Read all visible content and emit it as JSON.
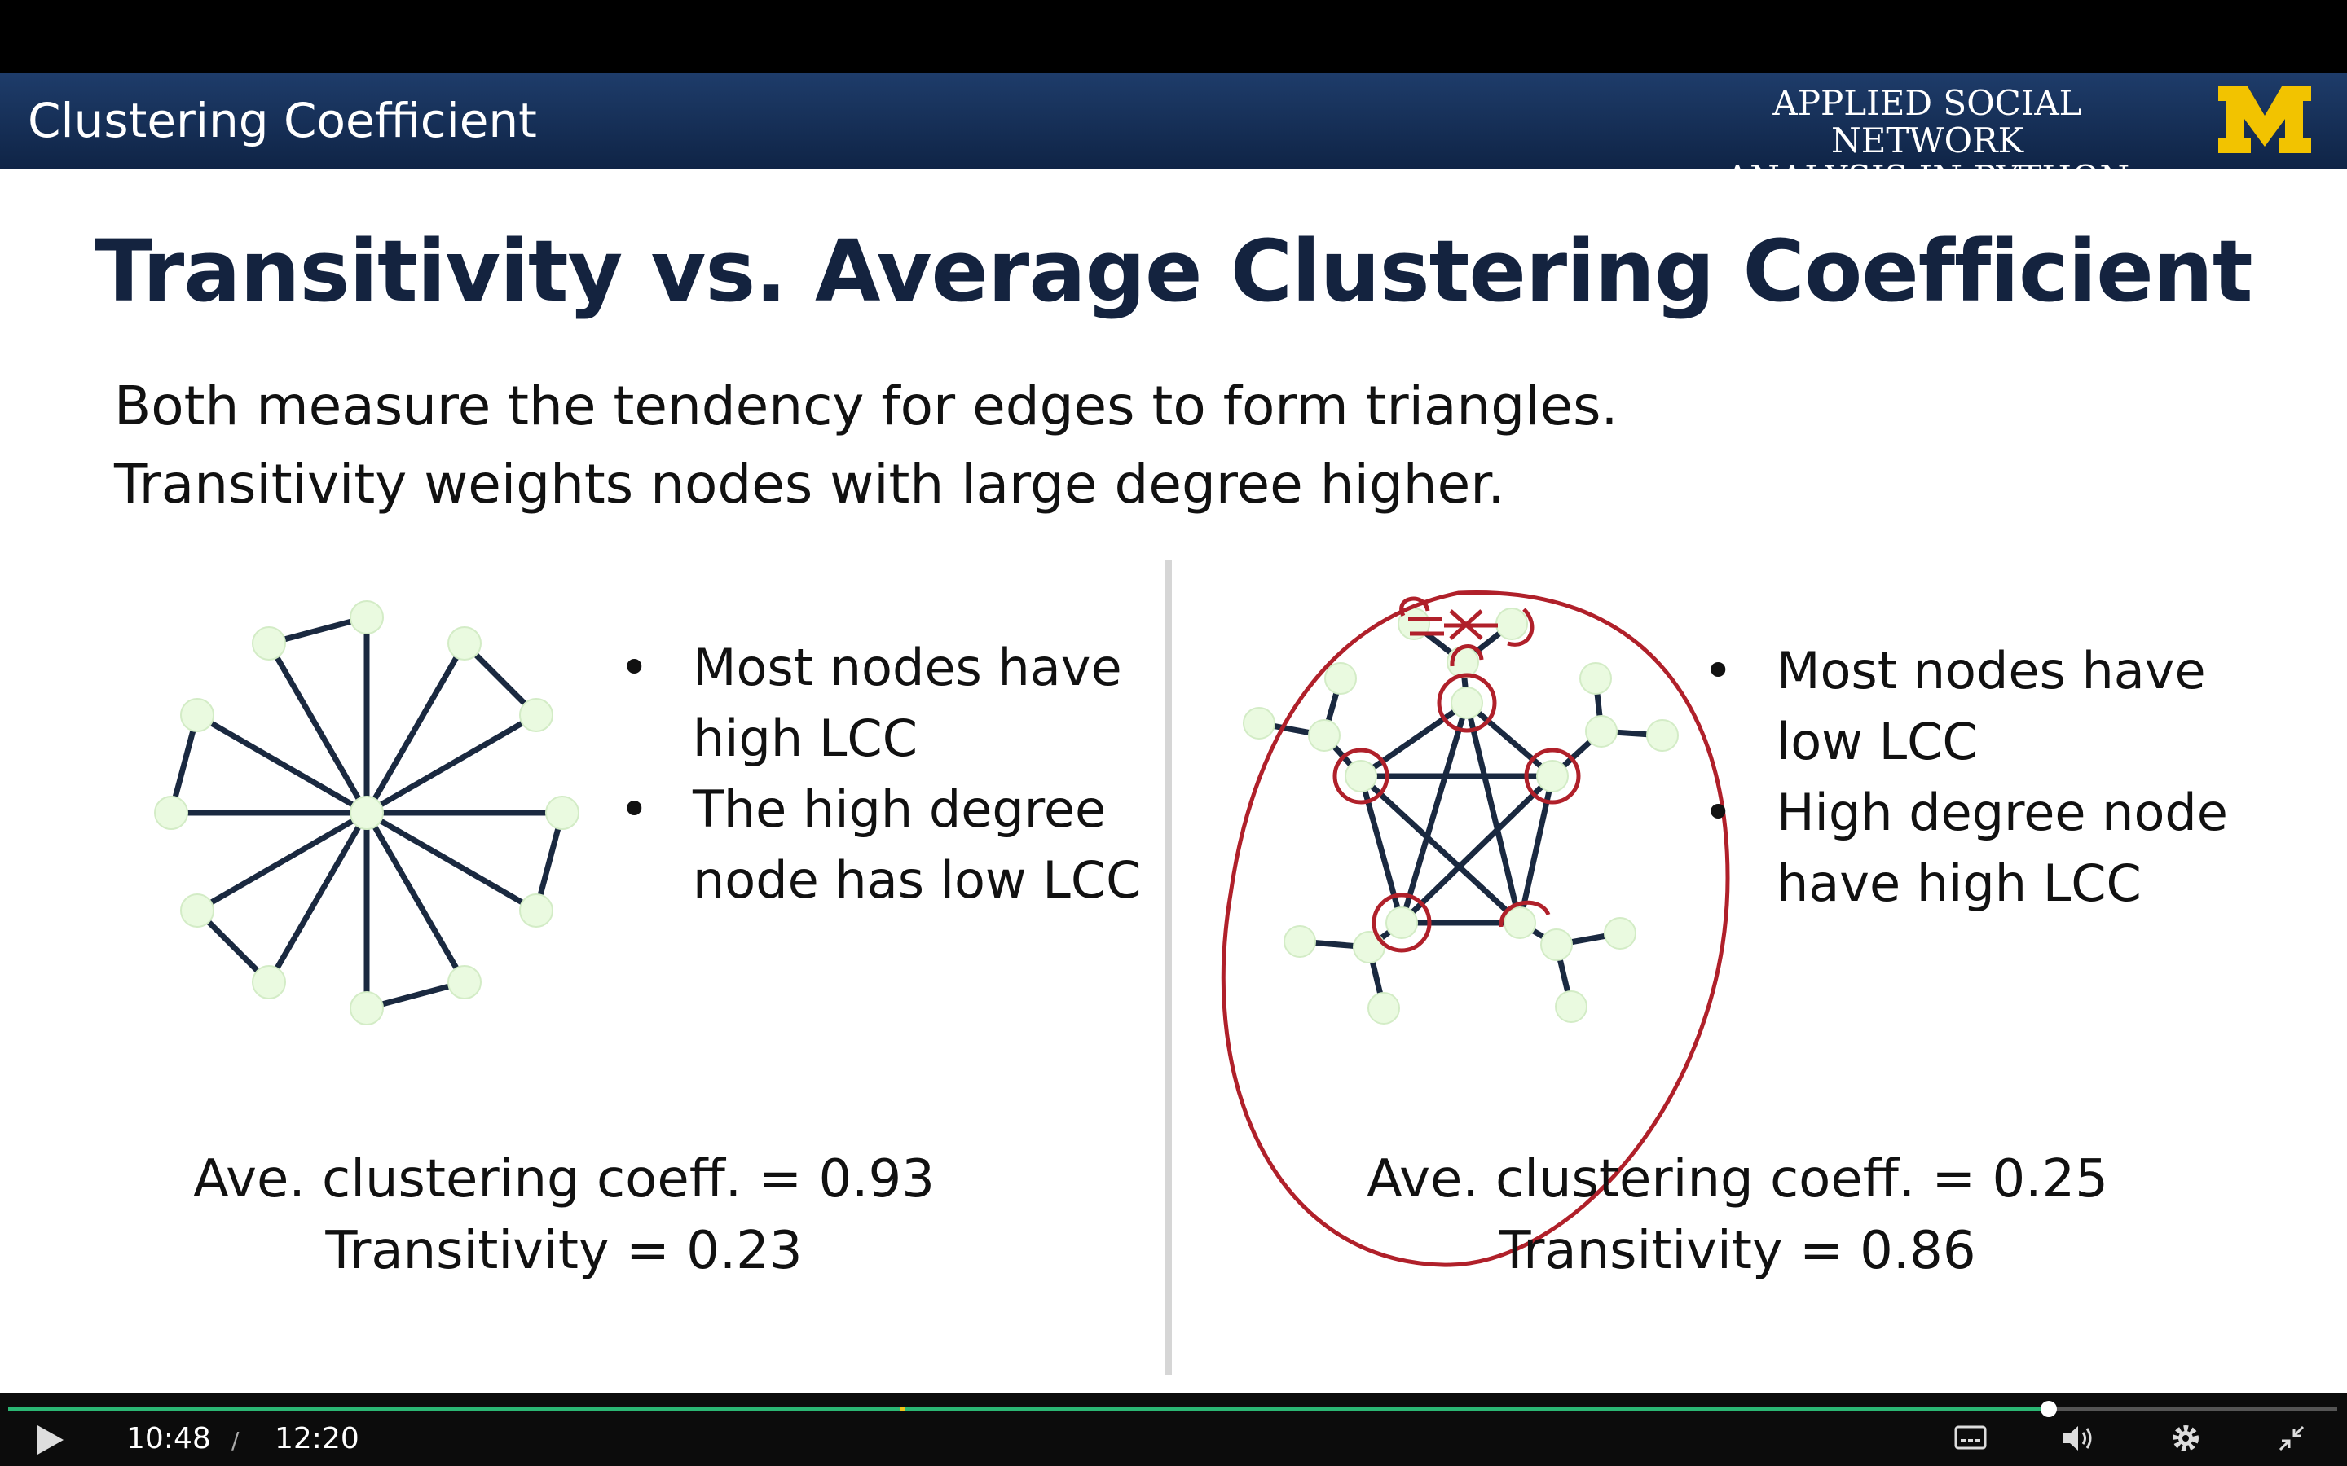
{
  "header": {
    "section_title": "Clustering Coefficient",
    "course_line1": "APPLIED SOCIAL NETWORK",
    "course_line2": "ANALYSIS IN PYTHON",
    "logo_letter": "M",
    "logo_color": "#f2c300"
  },
  "slide": {
    "title": "Transitivity vs. Average Clustering Coefficient",
    "intro_line1": "Both measure the tendency for edges to form triangles.",
    "intro_line2": "Transitivity weights nodes with large degree higher.",
    "left": {
      "bullet1_line1": "Most nodes have",
      "bullet1_line2": "high LCC",
      "bullet2_line1": "The high degree",
      "bullet2_line2": "node has low LCC",
      "stat1": "Ave. clustering coeff. = 0.93",
      "stat2": "Transitivity = 0.23"
    },
    "right": {
      "bullet1_line1": "Most nodes have",
      "bullet1_line2": "low LCC",
      "bullet2_line1": "High degree node",
      "bullet2_line2": "have high LCC",
      "stat1": "Ave. clustering coeff. = 0.25",
      "stat2": "Transitivity = 0.86"
    }
  },
  "colors": {
    "node_fill": "#eafae0",
    "edge": "#1a2940",
    "annotation": "#b0202a"
  },
  "player": {
    "current_time": "10:48",
    "separator": "/",
    "duration": "12:20",
    "progress_fraction": 0.876,
    "icons": [
      "play-icon",
      "captions-icon",
      "volume-icon",
      "settings-icon",
      "exit-fullscreen-icon"
    ]
  }
}
